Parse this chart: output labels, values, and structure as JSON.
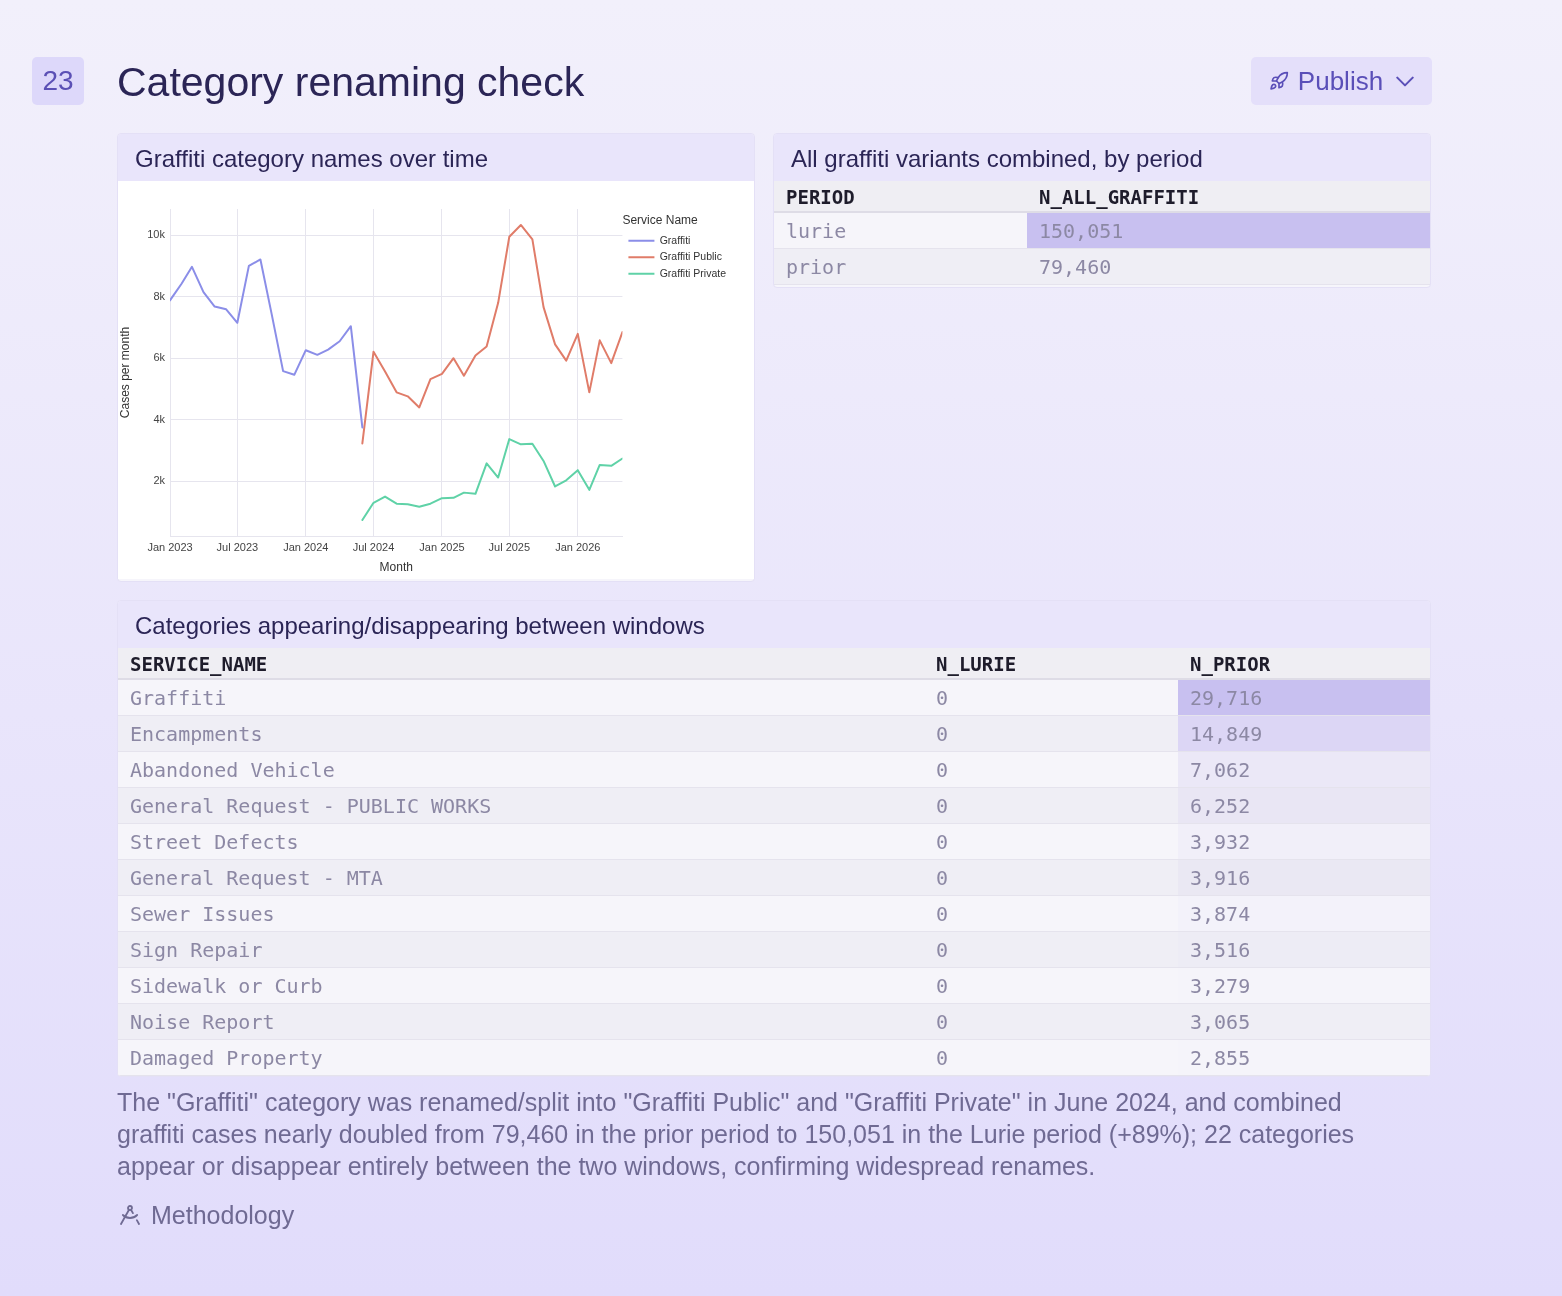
{
  "chart_data": [
    {
      "type": "other",
      "title": "Category renaming check",
      "annotations": [
        "23",
        "Publish"
      ]
    },
    {
      "type": "line",
      "title": "Graffiti category names over time",
      "xlabel": "Month",
      "ylabel": "Cases per month",
      "legend_title": "Service Name",
      "x": [
        "2023-01",
        "2023-02",
        "2023-03",
        "2023-04",
        "2023-05",
        "2023-06",
        "2023-07",
        "2023-08",
        "2023-09",
        "2023-10",
        "2023-11",
        "2023-12",
        "2024-01",
        "2024-02",
        "2024-03",
        "2024-04",
        "2024-05",
        "2024-06",
        "2024-07",
        "2024-08",
        "2024-09",
        "2024-10",
        "2024-11",
        "2024-12",
        "2025-01",
        "2025-02",
        "2025-03",
        "2025-04",
        "2025-05",
        "2025-06",
        "2025-07",
        "2025-08",
        "2025-09",
        "2025-10",
        "2025-11",
        "2025-12",
        "2026-01",
        "2026-02",
        "2026-03",
        "2026-04",
        "2026-05"
      ],
      "series": [
        {
          "name": "Graffiti",
          "color": "#8b8ee8",
          "values": [
            7880,
            8420,
            8970,
            8150,
            7680,
            7590,
            7150,
            9000,
            9210,
            7450,
            5580,
            5460,
            6260,
            6110,
            6280,
            6550,
            7040,
            3750,
            null,
            null,
            null,
            null,
            null,
            null,
            null,
            null,
            null,
            null,
            null,
            null,
            null,
            null,
            null,
            null,
            null,
            null,
            null,
            null,
            null,
            null,
            null
          ]
        },
        {
          "name": "Graffiti Public",
          "color": "#e07c69",
          "values": [
            null,
            null,
            null,
            null,
            null,
            null,
            null,
            null,
            null,
            null,
            null,
            null,
            null,
            null,
            null,
            null,
            null,
            3230,
            6210,
            5570,
            4890,
            4760,
            4400,
            5320,
            5490,
            6000,
            5430,
            6090,
            6380,
            7800,
            9950,
            10330,
            9860,
            7660,
            6450,
            5920,
            6790,
            4890,
            6580,
            5840,
            6850
          ]
        },
        {
          "name": "Graffiti Private",
          "color": "#5fd2a7",
          "values": [
            null,
            null,
            null,
            null,
            null,
            null,
            null,
            null,
            null,
            null,
            null,
            null,
            null,
            null,
            null,
            null,
            null,
            740,
            1300,
            1500,
            1270,
            1250,
            1170,
            1270,
            1450,
            1460,
            1630,
            1590,
            2580,
            2120,
            3370,
            3200,
            3220,
            2660,
            1830,
            2030,
            2360,
            1720,
            2530,
            2500,
            2740
          ]
        }
      ],
      "xlim": [
        "2023-01",
        "2026-05"
      ],
      "xticks": [
        {
          "value": "2023-01",
          "label": "Jan 2023"
        },
        {
          "value": "2023-07",
          "label": "Jul 2023"
        },
        {
          "value": "2024-01",
          "label": "Jan 2024"
        },
        {
          "value": "2024-07",
          "label": "Jul 2024"
        },
        {
          "value": "2025-01",
          "label": "Jan 2025"
        },
        {
          "value": "2025-07",
          "label": "Jul 2025"
        },
        {
          "value": "2026-01",
          "label": "Jan 2026"
        }
      ],
      "ylim": [
        220,
        10850
      ],
      "yticks": [
        {
          "value": 2000,
          "label": "2k"
        },
        {
          "value": 4000,
          "label": "4k"
        },
        {
          "value": 6000,
          "label": "6k"
        },
        {
          "value": 8000,
          "label": "8k"
        },
        {
          "value": 10000,
          "label": "10k"
        }
      ],
      "grid": true,
      "legend": "top right",
      "marker": "none"
    },
    {
      "type": "other",
      "title": "All graffiti variants combined, by period",
      "xlabel": "PERIOD",
      "categories": [
        "lurie",
        "prior"
      ],
      "series": [
        {
          "name": "N_ALL_GRAFFITI",
          "values": [
            150051,
            79460
          ],
          "value_labels": [
            "150,051",
            "79,460"
          ],
          "colors": [
            "#c8c0f0",
            "#efeef5"
          ]
        }
      ]
    },
    {
      "type": "other",
      "title": "Categories appearing/disappearing between windows",
      "xlabel": "SERVICE_NAME",
      "categories": [
        "Graffiti",
        "Encampments",
        "Abandoned Vehicle",
        "General Request - PUBLIC WORKS",
        "Street Defects",
        "General Request - MTA",
        "Sewer Issues",
        "Sign Repair",
        "Sidewalk or Curb",
        "Noise Report",
        "Damaged Property"
      ],
      "series": [
        {
          "name": "N_LURIE",
          "values": [
            0,
            0,
            0,
            0,
            0,
            0,
            0,
            0,
            0,
            0,
            0
          ],
          "value_labels": [
            "0",
            "0",
            "0",
            "0",
            "0",
            "0",
            "0",
            "0",
            "0",
            "0",
            "0"
          ],
          "colors": [
            "#f6f5fa",
            "#efeef5",
            "#f6f5fa",
            "#efeef5",
            "#f6f5fa",
            "#efeef5",
            "#f6f5fa",
            "#efeef5",
            "#f6f5fa",
            "#efeef5",
            "#f6f5fa"
          ]
        },
        {
          "name": "N_PRIOR",
          "values": [
            29716,
            14849,
            7062,
            6252,
            3932,
            3916,
            3874,
            3516,
            3279,
            3065,
            2855
          ],
          "value_labels": [
            "29,716",
            "14,849",
            "7,062",
            "6,252",
            "3,932",
            "3,916",
            "3,874",
            "3,516",
            "3,279",
            "3,065",
            "2,855"
          ],
          "colors": [
            "#c8c0f0",
            "#dcd6f5",
            "#ebe8f7",
            "#e9e6f4",
            "#f1eff9",
            "#eae8f3",
            "#f3f2fa",
            "#edecf5",
            "#f5f4fa",
            "#efeef5",
            "#f5f4fa"
          ]
        }
      ]
    },
    {
      "type": "other",
      "annotations": [
        "The \"Graffiti\" category was renamed/split into \"Graffiti Public\" and \"Graffiti Private\" in June 2024, and combined graffiti cases nearly doubled from 79,460 in the prior period to 150,051 in the Lurie period (+89%); 22 categories appear or disappear entirely between the two windows, confirming widespread renames.",
        "Methodology"
      ]
    }
  ]
}
